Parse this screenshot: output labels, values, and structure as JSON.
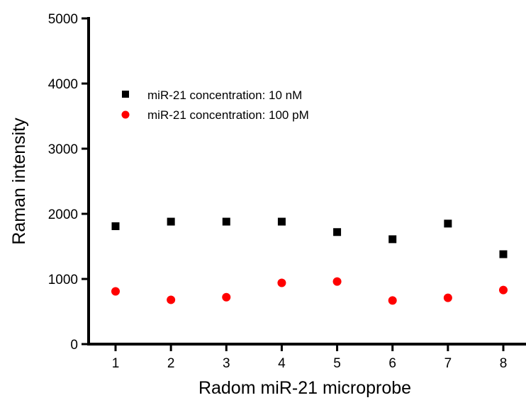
{
  "chart_data": {
    "type": "scatter",
    "title": "",
    "xlabel": "Radom miR-21 microprobe",
    "ylabel": "Raman intensity",
    "x": [
      1,
      2,
      3,
      4,
      5,
      6,
      7,
      8
    ],
    "x_ticks": [
      "1",
      "2",
      "3",
      "4",
      "5",
      "6",
      "7",
      "8"
    ],
    "xlim": [
      0.5,
      8.5
    ],
    "ylim": [
      0,
      5000
    ],
    "y_ticks": [
      "0",
      "1000",
      "2000",
      "3000",
      "4000",
      "5000"
    ],
    "grid": false,
    "legend_position": "top-left",
    "series": [
      {
        "name": "miR-21 concentration: 10 nM",
        "marker": "square",
        "color": "#000000",
        "values": [
          1810,
          1880,
          1880,
          1880,
          1720,
          1610,
          1850,
          1380
        ]
      },
      {
        "name": "miR-21 concentration: 100 pM",
        "marker": "circle",
        "color": "#ff0000",
        "values": [
          810,
          680,
          720,
          940,
          960,
          670,
          710,
          830
        ]
      }
    ]
  }
}
